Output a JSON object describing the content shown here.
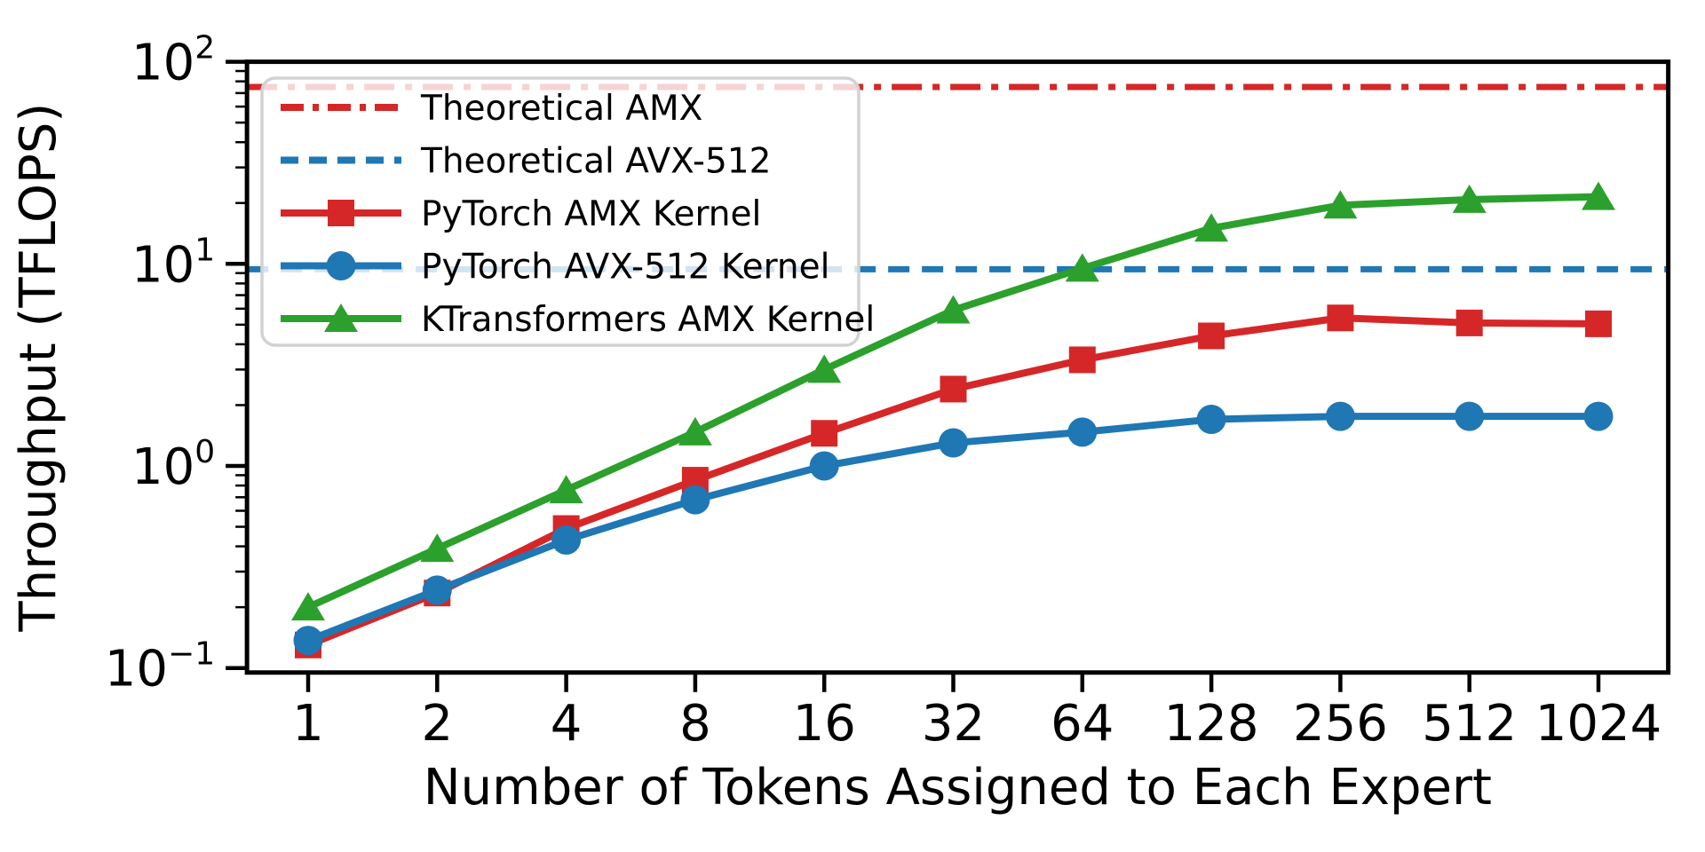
{
  "figure": {
    "xlabel": "Number of Tokens Assigned to Each Expert",
    "ylabel": "Throughput (TFLOPS)",
    "background_color": "#ffffff",
    "frame_color": "#000000"
  },
  "chart_data": {
    "type": "line",
    "title": "",
    "xlabel": "Number of Tokens Assigned to Each Expert",
    "ylabel": "Throughput (TFLOPS)",
    "x_scale": "log2",
    "y_scale": "log10",
    "xlim": [
      0.72,
      1490
    ],
    "ylim": [
      0.095,
      100
    ],
    "grid": false,
    "x": [
      1,
      2,
      4,
      8,
      16,
      32,
      64,
      128,
      256,
      512,
      1024
    ],
    "x_tick_labels": [
      "1",
      "2",
      "4",
      "8",
      "16",
      "32",
      "64",
      "128",
      "256",
      "512",
      "1024"
    ],
    "y_ticks": [
      {
        "value": 0.1,
        "base": "10",
        "exponent": "−1"
      },
      {
        "value": 1,
        "base": "10",
        "exponent": "0"
      },
      {
        "value": 10,
        "base": "10",
        "exponent": "1"
      },
      {
        "value": 100,
        "base": "10",
        "exponent": "2"
      }
    ],
    "series": [
      {
        "name": "Theoretical AMX",
        "kind": "hline",
        "value": 75,
        "color": "#d62728",
        "linestyle": "dashdot",
        "marker": "none"
      },
      {
        "name": "Theoretical AVX-512",
        "kind": "hline",
        "value": 9.4,
        "color": "#1f77b4",
        "linestyle": "dashed",
        "marker": "none"
      },
      {
        "name": "PyTorch AMX Kernel",
        "kind": "line",
        "color": "#d62728",
        "linestyle": "solid",
        "marker": "square",
        "values": [
          0.13,
          0.235,
          0.49,
          0.85,
          1.45,
          2.4,
          3.35,
          4.4,
          5.4,
          5.1,
          5.05
        ]
      },
      {
        "name": "PyTorch AVX-512 Kernel",
        "kind": "line",
        "color": "#1f77b4",
        "linestyle": "solid",
        "marker": "circle",
        "values": [
          0.137,
          0.243,
          0.43,
          0.68,
          1.0,
          1.3,
          1.47,
          1.7,
          1.76,
          1.76,
          1.76
        ]
      },
      {
        "name": "KTransformers AMX Kernel",
        "kind": "line",
        "color": "#2ca02c",
        "linestyle": "solid",
        "marker": "triangle",
        "values": [
          0.2,
          0.39,
          0.76,
          1.47,
          3.0,
          5.9,
          9.5,
          15.0,
          19.5,
          20.8,
          21.5
        ]
      }
    ],
    "legend": {
      "position": "upper-left",
      "frame": true
    }
  }
}
